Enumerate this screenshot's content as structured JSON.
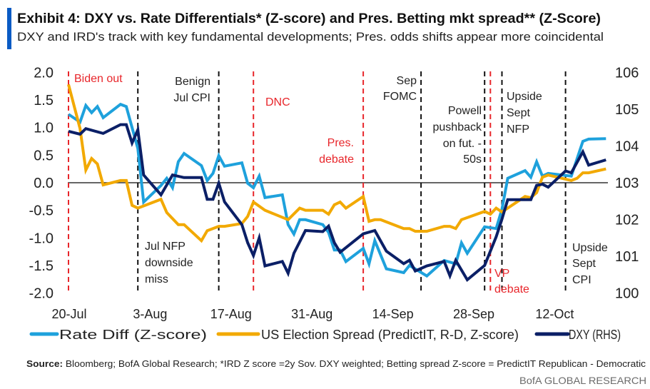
{
  "header": {
    "title": "Exhibit 4: DXY vs. Rate Differentials* (Z-score) and Pres. Betting mkt spread** (Z-Score)",
    "subtitle": "DXY and IRD's track with key fundamental developments; Pres. odds shifts appear more coincidental",
    "accent_color": "#0a5bc4"
  },
  "chart_data": {
    "type": "line",
    "title": "",
    "xlabel": "",
    "ylabel": "",
    "y_left": {
      "range": [
        -2.0,
        2.0
      ],
      "ticks": [
        "2.0",
        "1.5",
        "1.0",
        "0.5",
        "0.0",
        "-0.5",
        "-1.0",
        "-1.5",
        "-2.0"
      ]
    },
    "y_right": {
      "range": [
        100,
        106
      ],
      "ticks": [
        "106",
        "105",
        "104",
        "103",
        "102",
        "101",
        "100"
      ]
    },
    "x_ticks": [
      "20-Jul",
      "3-Aug",
      "17-Aug",
      "31-Aug",
      "14-Sep",
      "28-Sep",
      "12-Oct"
    ],
    "zero_line": true,
    "grid": false,
    "legend_placement": "bottom",
    "series": [
      {
        "name": "Rate Diff (Z-score)",
        "axis": "left",
        "color": "#1ea1dc",
        "points": [
          [
            "20-Jul",
            1.24
          ],
          [
            "22-Jul",
            1.1
          ],
          [
            "23-Jul",
            1.4
          ],
          [
            "24-Jul",
            1.27
          ],
          [
            "25-Jul",
            1.38
          ],
          [
            "26-Jul",
            1.18
          ],
          [
            "29-Jul",
            1.42
          ],
          [
            "30-Jul",
            1.38
          ],
          [
            "1-Aug",
            0.62
          ],
          [
            "2-Aug",
            -0.35
          ],
          [
            "5-Aug",
            -0.05
          ],
          [
            "6-Aug",
            0.08
          ],
          [
            "7-Aug",
            -0.09
          ],
          [
            "8-Aug",
            0.38
          ],
          [
            "9-Aug",
            0.53
          ],
          [
            "12-Aug",
            0.31
          ],
          [
            "13-Aug",
            0.04
          ],
          [
            "14-Aug",
            0.17
          ],
          [
            "15-Aug",
            0.49
          ],
          [
            "16-Aug",
            0.3
          ],
          [
            "19-Aug",
            0.36
          ],
          [
            "20-Aug",
            -0.01
          ],
          [
            "21-Aug",
            -0.09
          ],
          [
            "22-Aug",
            0.12
          ],
          [
            "23-Aug",
            -0.27
          ],
          [
            "26-Aug",
            -0.22
          ],
          [
            "27-Aug",
            -0.76
          ],
          [
            "28-Aug",
            -0.93
          ],
          [
            "29-Aug",
            -0.67
          ],
          [
            "30-Aug",
            -0.67
          ],
          [
            "2-Sep",
            -0.76
          ],
          [
            "3-Sep",
            -0.9
          ],
          [
            "4-Sep",
            -1.22
          ],
          [
            "5-Sep",
            -1.22
          ],
          [
            "6-Sep",
            -1.43
          ],
          [
            "9-Sep",
            -1.19
          ],
          [
            "10-Sep",
            -1.47
          ],
          [
            "11-Sep",
            -1.05
          ],
          [
            "13-Sep",
            -1.56
          ],
          [
            "16-Sep",
            -1.63
          ],
          [
            "17-Sep",
            -1.5
          ],
          [
            "20-Sep",
            -1.69
          ],
          [
            "23-Sep",
            -1.41
          ],
          [
            "25-Sep",
            -1.47
          ],
          [
            "26-Sep",
            -1.09
          ],
          [
            "27-Sep",
            -1.28
          ],
          [
            "30-Sep",
            -0.8
          ],
          [
            "2-Oct",
            -0.83
          ],
          [
            "3-Oct",
            -0.48
          ],
          [
            "4-Oct",
            0.08
          ],
          [
            "7-Oct",
            0.22
          ],
          [
            "8-Oct",
            0.1
          ],
          [
            "9-Oct",
            0.38
          ],
          [
            "10-Oct",
            0.12
          ],
          [
            "11-Oct",
            0.17
          ],
          [
            "15-Oct",
            0.12
          ],
          [
            "17-Oct",
            0.75
          ],
          [
            "18-Oct",
            0.79
          ],
          [
            "21-Oct",
            0.8
          ]
        ]
      },
      {
        "name": "US Election Spread (PredictIT, R-D, Z-score)",
        "axis": "left",
        "color": "#f2a900",
        "points": [
          [
            "20-Jul",
            1.78
          ],
          [
            "22-Jul",
            0.98
          ],
          [
            "23-Jul",
            0.23
          ],
          [
            "24-Jul",
            0.44
          ],
          [
            "25-Jul",
            0.34
          ],
          [
            "26-Jul",
            -0.04
          ],
          [
            "29-Jul",
            0.04
          ],
          [
            "30-Jul",
            0.04
          ],
          [
            "31-Jul",
            -0.41
          ],
          [
            "1-Aug",
            -0.46
          ],
          [
            "5-Aug",
            -0.3
          ],
          [
            "6-Aug",
            -0.54
          ],
          [
            "8-Aug",
            -0.76
          ],
          [
            "9-Aug",
            -0.76
          ],
          [
            "12-Aug",
            -1.05
          ],
          [
            "13-Aug",
            -0.87
          ],
          [
            "15-Aug",
            -0.79
          ],
          [
            "16-Aug",
            -0.79
          ],
          [
            "19-Aug",
            -0.74
          ],
          [
            "20-Aug",
            -0.61
          ],
          [
            "21-Aug",
            -0.35
          ],
          [
            "23-Aug",
            -0.5
          ],
          [
            "27-Aug",
            -0.67
          ],
          [
            "29-Aug",
            -0.46
          ],
          [
            "30-Aug",
            -0.5
          ],
          [
            "2-Sep",
            -0.5
          ],
          [
            "3-Sep",
            -0.57
          ],
          [
            "4-Sep",
            -0.4
          ],
          [
            "5-Sep",
            -0.35
          ],
          [
            "6-Sep",
            -0.46
          ],
          [
            "9-Sep",
            -0.25
          ],
          [
            "10-Sep",
            -0.7
          ],
          [
            "11-Sep",
            -0.67
          ],
          [
            "12-Sep",
            -0.67
          ],
          [
            "16-Sep",
            -0.83
          ],
          [
            "17-Sep",
            -0.83
          ],
          [
            "18-Sep",
            -0.88
          ],
          [
            "20-Sep",
            -0.88
          ],
          [
            "23-Sep",
            -0.79
          ],
          [
            "24-Sep",
            -0.79
          ],
          [
            "25-Sep",
            -0.83
          ],
          [
            "26-Sep",
            -0.67
          ],
          [
            "30-Sep",
            -0.52
          ],
          [
            "1-Oct",
            -0.57
          ],
          [
            "2-Oct",
            -0.46
          ],
          [
            "3-Oct",
            -0.53
          ],
          [
            "7-Oct",
            -0.25
          ],
          [
            "8-Oct",
            -0.27
          ],
          [
            "9-Oct",
            -0.18
          ],
          [
            "10-Oct",
            0.1
          ],
          [
            "11-Oct",
            0.14
          ],
          [
            "15-Oct",
            0.04
          ],
          [
            "16-Oct",
            0.08
          ],
          [
            "17-Oct",
            0.18
          ],
          [
            "18-Oct",
            0.18
          ],
          [
            "21-Oct",
            0.25
          ]
        ]
      },
      {
        "name": "DXY (RHS)",
        "axis": "right",
        "color": "#0b1f66",
        "points": [
          [
            "20-Jul",
            104.4
          ],
          [
            "22-Jul",
            104.32
          ],
          [
            "23-Jul",
            104.47
          ],
          [
            "26-Jul",
            104.34
          ],
          [
            "29-Jul",
            104.58
          ],
          [
            "30-Jul",
            104.58
          ],
          [
            "31-Jul",
            104.08
          ],
          [
            "1-Aug",
            104.44
          ],
          [
            "2-Aug",
            103.21
          ],
          [
            "5-Aug",
            102.67
          ],
          [
            "7-Aug",
            103.21
          ],
          [
            "9-Aug",
            103.14
          ],
          [
            "12-Aug",
            103.14
          ],
          [
            "13-Aug",
            102.55
          ],
          [
            "14-Aug",
            102.55
          ],
          [
            "15-Aug",
            102.99
          ],
          [
            "16-Aug",
            102.48
          ],
          [
            "19-Aug",
            101.86
          ],
          [
            "20-Aug",
            101.37
          ],
          [
            "21-Aug",
            101.02
          ],
          [
            "22-Aug",
            101.5
          ],
          [
            "23-Aug",
            100.74
          ],
          [
            "26-Aug",
            100.86
          ],
          [
            "27-Aug",
            100.54
          ],
          [
            "28-Aug",
            101.08
          ],
          [
            "30-Aug",
            101.7
          ],
          [
            "2-Sep",
            101.67
          ],
          [
            "3-Sep",
            101.82
          ],
          [
            "4-Sep",
            101.37
          ],
          [
            "5-Sep",
            101.11
          ],
          [
            "9-Sep",
            101.61
          ],
          [
            "11-Sep",
            101.7
          ],
          [
            "13-Sep",
            101.14
          ],
          [
            "16-Sep",
            100.8
          ],
          [
            "17-Sep",
            100.89
          ],
          [
            "18-Sep",
            100.6
          ],
          [
            "20-Sep",
            100.74
          ],
          [
            "23-Sep",
            100.86
          ],
          [
            "24-Sep",
            100.47
          ],
          [
            "25-Sep",
            100.89
          ],
          [
            "27-Sep",
            100.36
          ],
          [
            "30-Sep",
            100.75
          ],
          [
            "2-Oct",
            101.53
          ],
          [
            "3-Oct",
            102.01
          ],
          [
            "4-Oct",
            102.54
          ],
          [
            "8-Oct",
            102.54
          ],
          [
            "9-Oct",
            102.93
          ],
          [
            "10-Oct",
            102.96
          ],
          [
            "11-Oct",
            102.88
          ],
          [
            "14-Oct",
            103.32
          ],
          [
            "15-Oct",
            103.27
          ],
          [
            "17-Oct",
            103.84
          ],
          [
            "18-Oct",
            103.48
          ],
          [
            "21-Oct",
            103.62
          ]
        ]
      }
    ],
    "events": [
      {
        "date": "20-Jul",
        "color": "#e8262b",
        "label": [
          "Biden out"
        ]
      },
      {
        "date": "1-Aug",
        "color": "#111111",
        "label": [
          "Jul NFP",
          "downside",
          "miss"
        ]
      },
      {
        "date": "15-Aug",
        "color": "#111111",
        "label": [
          "Benign",
          "Jul CPI"
        ]
      },
      {
        "date": "21-Aug",
        "color": "#e8262b",
        "label": [
          "DNC"
        ]
      },
      {
        "date": "9-Sep",
        "color": "#e8262b",
        "label": [
          "Pres.",
          "debate"
        ]
      },
      {
        "date": "19-Sep",
        "color": "#111111",
        "label": [
          "Sep",
          "FOMC"
        ]
      },
      {
        "date": "30-Sep",
        "color": "#111111",
        "label": [
          "Powell",
          "pushback",
          "on fut. -",
          "50s"
        ]
      },
      {
        "date": "1-Oct",
        "color": "#e8262b",
        "label": [
          "VP",
          "debate"
        ]
      },
      {
        "date": "3-Oct",
        "color": "#111111",
        "label": [
          "Upside",
          "Sept",
          "NFP"
        ]
      },
      {
        "date": "14-Oct",
        "color": "#111111",
        "label": [
          "Upside",
          "Sept",
          "CPI"
        ]
      }
    ]
  },
  "footer": {
    "source_label": "Source:",
    "source_text": " Bloomberg; BofA Global Research; *IRD Z score =2y Sov. DXY weighted; Betting spread Z-score = PredictIT Republican - Democratic",
    "brand": "BofA GLOBAL RESEARCH"
  }
}
